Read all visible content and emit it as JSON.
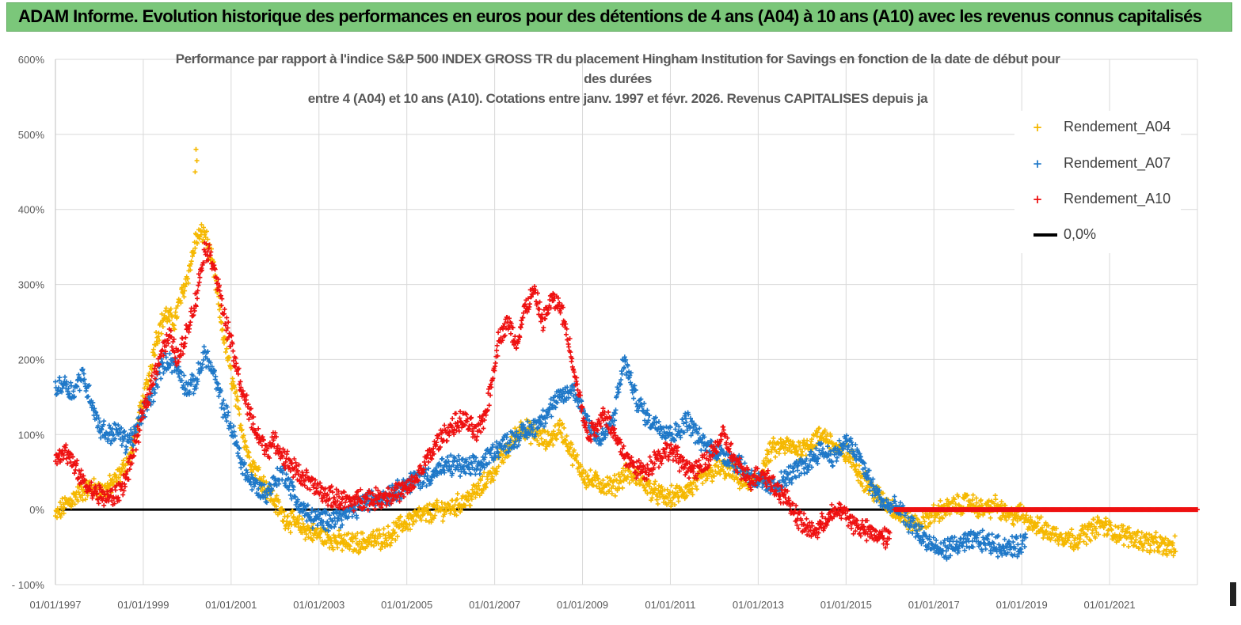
{
  "header": {
    "title": "ADAM Informe. Evolution historique des performances en euros pour des détentions de 4 ans (A04) à 10 ans (A10) avec les revenus connus capitalisés"
  },
  "colors": {
    "header_bg": "#7bc77a",
    "a04": "#f5b800",
    "a07": "#1f78c8",
    "a10": "#ee1111",
    "zero_line": "#000000",
    "grid": "#d9d9d9",
    "axis_text": "#595959"
  },
  "chart_data": {
    "type": "scatter",
    "title_lines": [
      "Performance par rapport à l'indice S&P 500 INDEX GROSS TR  du placement Hingham Institution for Savings en fonction de la date de début pour",
      "des durées",
      "entre 4 (A04) et 10 ans (A10). Cotations entre janv. 1997 et févr. 2026. Revenus CAPITALISES depuis ja"
    ],
    "xlabel": "",
    "ylabel": "",
    "x_range": [
      1997.0,
      2023.0
    ],
    "ylim": [
      -100,
      600
    ],
    "y_ticks": [
      "600%",
      "500%",
      "400%",
      "300%",
      "200%",
      "100%",
      "0%",
      "- 100%"
    ],
    "y_tick_values": [
      600,
      500,
      400,
      300,
      200,
      100,
      0,
      -100
    ],
    "x_ticks": [
      "01/01/1997",
      "01/01/1999",
      "01/01/2001",
      "01/01/2003",
      "01/01/2005",
      "01/01/2007",
      "01/01/2009",
      "01/01/2011",
      "01/01/2013",
      "01/01/2015",
      "01/01/2017",
      "01/01/2019",
      "01/01/2021"
    ],
    "x_tick_values": [
      1997,
      1999,
      2001,
      2003,
      2005,
      2007,
      2009,
      2011,
      2013,
      2015,
      2017,
      2019,
      2021
    ],
    "legend_position": "top-right",
    "series": [
      {
        "name": "Rendement_A04",
        "color": "#f5b800",
        "x": [
          1997.0,
          1997.2,
          1997.5,
          1997.8,
          1998.1,
          1998.4,
          1998.7,
          1998.9,
          1999.1,
          1999.3,
          1999.5,
          1999.7,
          1999.9,
          2000.05,
          2000.2,
          2000.4,
          2000.6,
          2000.8,
          2001.0,
          2001.2,
          2001.4,
          2001.6,
          2001.8,
          2002.0,
          2002.2,
          2002.5,
          2002.8,
          2003.1,
          2003.4,
          2003.7,
          2004.0,
          2004.3,
          2004.6,
          2004.9,
          2005.2,
          2005.5,
          2005.8,
          2006.1,
          2006.4,
          2006.7,
          2007.0,
          2007.3,
          2007.6,
          2007.9,
          2008.2,
          2008.5,
          2008.8,
          2009.1,
          2009.4,
          2009.7,
          2010.0,
          2010.3,
          2010.6,
          2010.9,
          2011.2,
          2011.5,
          2011.8,
          2012.1,
          2012.4,
          2012.7,
          2013.0,
          2013.3,
          2013.6,
          2013.9,
          2014.2,
          2014.5,
          2014.8,
          2015.1,
          2015.4,
          2015.7,
          2016.0,
          2016.3,
          2016.6,
          2016.9,
          2017.2,
          2017.5,
          2017.8,
          2018.1,
          2018.4,
          2018.7,
          2019.0,
          2019.3,
          2019.6,
          2019.9,
          2020.2,
          2020.5,
          2020.8,
          2021.1,
          2021.4,
          2021.7,
          2022.0,
          2022.3,
          2022.5
        ],
        "values": [
          -10,
          5,
          20,
          30,
          25,
          40,
          70,
          120,
          170,
          230,
          260,
          250,
          290,
          320,
          360,
          370,
          320,
          240,
          180,
          120,
          70,
          50,
          30,
          10,
          -10,
          -20,
          -30,
          -35,
          -42,
          -45,
          -43,
          -40,
          -35,
          -20,
          -10,
          -5,
          0,
          5,
          15,
          30,
          55,
          80,
          110,
          100,
          90,
          110,
          70,
          40,
          35,
          30,
          50,
          40,
          25,
          15,
          20,
          30,
          45,
          55,
          50,
          35,
          40,
          80,
          85,
          80,
          90,
          100,
          80,
          70,
          40,
          20,
          5,
          -10,
          -20,
          -10,
          0,
          5,
          10,
          0,
          5,
          -10,
          -5,
          -20,
          -30,
          -35,
          -40,
          -30,
          -20,
          -30,
          -35,
          -40,
          -45,
          -50,
          -50
        ]
      },
      {
        "name": "Rendement_A07",
        "color": "#1f78c8",
        "x": [
          1997.0,
          1997.2,
          1997.4,
          1997.6,
          1997.8,
          1998.0,
          1998.2,
          1998.4,
          1998.6,
          1998.8,
          1999.0,
          1999.2,
          1999.4,
          1999.6,
          1999.8,
          2000.0,
          2000.2,
          2000.4,
          2000.6,
          2000.8,
          2001.0,
          2001.2,
          2001.4,
          2001.6,
          2001.8,
          2002.0,
          2002.2,
          2002.5,
          2002.8,
          2003.1,
          2003.4,
          2003.7,
          2004.0,
          2004.3,
          2004.6,
          2004.9,
          2005.2,
          2005.5,
          2005.8,
          2006.1,
          2006.4,
          2006.7,
          2007.0,
          2007.3,
          2007.6,
          2007.9,
          2008.2,
          2008.5,
          2008.8,
          2009.1,
          2009.4,
          2009.7,
          2009.95,
          2010.2,
          2010.5,
          2010.8,
          2011.1,
          2011.4,
          2011.7,
          2012.0,
          2012.3,
          2012.6,
          2012.9,
          2013.2,
          2013.5,
          2013.8,
          2014.1,
          2014.4,
          2014.7,
          2015.0,
          2015.3,
          2015.6,
          2015.9,
          2016.2,
          2016.5,
          2016.8,
          2017.1,
          2017.4,
          2017.7,
          2018.0,
          2018.3,
          2018.6,
          2018.9,
          2019.1
        ],
        "values": [
          160,
          170,
          155,
          180,
          150,
          110,
          100,
          105,
          90,
          100,
          130,
          150,
          190,
          200,
          185,
          160,
          170,
          210,
          180,
          140,
          110,
          70,
          40,
          30,
          20,
          40,
          50,
          10,
          -10,
          -15,
          -10,
          -5,
          10,
          15,
          20,
          30,
          40,
          45,
          55,
          60,
          55,
          60,
          80,
          90,
          100,
          110,
          130,
          150,
          160,
          120,
          90,
          120,
          200,
          150,
          120,
          110,
          100,
          120,
          90,
          80,
          70,
          60,
          40,
          30,
          35,
          50,
          60,
          80,
          70,
          90,
          70,
          30,
          5,
          0,
          -20,
          -40,
          -55,
          -50,
          -45,
          -40,
          -45,
          -50,
          -50,
          -40
        ]
      },
      {
        "name": "Rendement_A10",
        "color": "#ee1111",
        "x": [
          1997.0,
          1997.2,
          1997.4,
          1997.6,
          1997.8,
          1998.0,
          1998.2,
          1998.4,
          1998.6,
          1998.8,
          1999.0,
          1999.2,
          1999.4,
          1999.6,
          1999.8,
          2000.0,
          2000.2,
          2000.4,
          2000.6,
          2000.8,
          2001.0,
          2001.2,
          2001.4,
          2001.6,
          2001.8,
          2002.0,
          2002.2,
          2002.5,
          2002.8,
          2003.1,
          2003.4,
          2003.7,
          2004.0,
          2004.3,
          2004.6,
          2004.9,
          2005.1,
          2005.4,
          2005.7,
          2006.0,
          2006.3,
          2006.6,
          2006.8,
          2006.9,
          2007.1,
          2007.3,
          2007.5,
          2007.7,
          2007.9,
          2008.1,
          2008.3,
          2008.5,
          2008.7,
          2008.9,
          2009.1,
          2009.3,
          2009.5,
          2009.8,
          2010.1,
          2010.4,
          2010.7,
          2011.0,
          2011.3,
          2011.6,
          2011.9,
          2012.2,
          2012.5,
          2012.8,
          2013.1,
          2013.4,
          2013.7,
          2014.0,
          2014.3,
          2014.6,
          2014.9,
          2015.2,
          2015.5,
          2015.8,
          2016.0
        ],
        "values": [
          70,
          80,
          60,
          40,
          25,
          20,
          15,
          20,
          40,
          80,
          130,
          170,
          210,
          230,
          200,
          240,
          280,
          350,
          330,
          270,
          220,
          170,
          130,
          100,
          80,
          90,
          70,
          50,
          35,
          20,
          15,
          10,
          15,
          15,
          20,
          25,
          30,
          60,
          90,
          110,
          120,
          100,
          130,
          160,
          230,
          250,
          220,
          270,
          290,
          250,
          280,
          270,
          220,
          160,
          100,
          110,
          130,
          90,
          60,
          50,
          70,
          80,
          60,
          50,
          70,
          100,
          60,
          40,
          50,
          30,
          10,
          -20,
          -30,
          -10,
          0,
          -20,
          -30,
          -35,
          -40
        ]
      }
    ],
    "zero_line": {
      "name": "0,0%",
      "value": 0
    },
    "a10_flat_start": 2016.1
  },
  "legend": {
    "items": [
      {
        "label": "Rendement_A04",
        "marker": "+"
      },
      {
        "label": "Rendement_A07",
        "marker": "+"
      },
      {
        "label": "Rendement_A10",
        "marker": "+"
      },
      {
        "label": "0,0%",
        "marker": "line"
      }
    ]
  }
}
